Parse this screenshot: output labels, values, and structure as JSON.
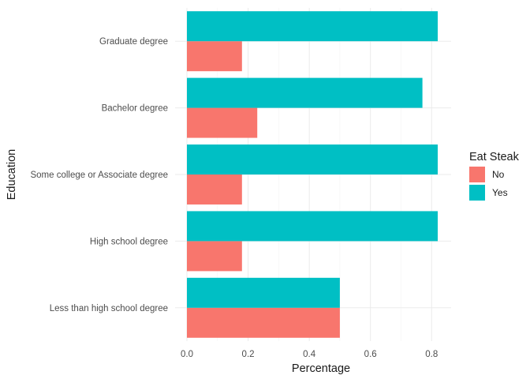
{
  "chart_data": {
    "type": "bar",
    "orientation": "horizontal",
    "position": "dodge",
    "categories": [
      "Less than high school degree",
      "High school degree",
      "Some college or Associate degree",
      "Bachelor degree",
      "Graduate degree"
    ],
    "series": [
      {
        "name": "No",
        "color": "#F8766D",
        "values": [
          0.5,
          0.18,
          0.18,
          0.23,
          0.18
        ]
      },
      {
        "name": "Yes",
        "color": "#00BFC4",
        "values": [
          0.5,
          0.82,
          0.82,
          0.77,
          0.82
        ]
      }
    ],
    "xlabel": "Percentage",
    "ylabel": "Education",
    "xlim": [
      0,
      0.86
    ],
    "x_ticks": [
      0.0,
      0.2,
      0.4,
      0.6,
      0.8
    ],
    "x_tick_labels": [
      "0.0",
      "0.2",
      "0.4",
      "0.6",
      "0.8"
    ],
    "grid": true,
    "legend": {
      "title": "Eat Steak",
      "position": "right"
    }
  }
}
